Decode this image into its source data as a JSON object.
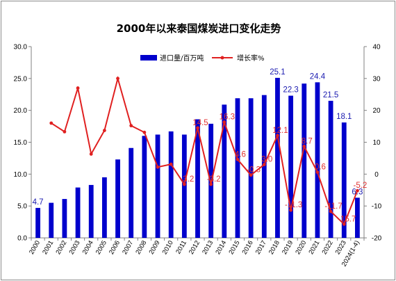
{
  "chart_data": {
    "type": "bar",
    "title": "2000年以来泰国煤炭进口变化走势",
    "categories": [
      "2000",
      "2001",
      "2002",
      "2003",
      "2004",
      "2005",
      "2006",
      "2007",
      "2008",
      "2009",
      "2010",
      "2011",
      "2012",
      "2013",
      "2014",
      "2015",
      "2016",
      "2017",
      "2018",
      "2019",
      "2020",
      "2021",
      "2022",
      "2023",
      "2024(1-4)"
    ],
    "series": [
      {
        "name": "进口量/百万吨",
        "type": "bar",
        "axis": "left",
        "color": "#0000cc",
        "values": [
          4.7,
          5.5,
          6.1,
          7.9,
          8.3,
          9.5,
          12.3,
          14.1,
          16.0,
          16.2,
          16.7,
          16.2,
          18.6,
          17.9,
          20.9,
          21.9,
          21.9,
          22.4,
          25.1,
          22.3,
          24.2,
          24.4,
          21.5,
          18.1,
          6.3
        ]
      },
      {
        "name": "增长率%",
        "type": "line",
        "axis": "right",
        "color": "#e02020",
        "values": [
          null,
          16.0,
          13.3,
          27.0,
          6.3,
          13.7,
          30.0,
          15.2,
          13.1,
          2.2,
          3.1,
          -3.2,
          14.5,
          -3.2,
          16.3,
          4.6,
          -0.3,
          3.0,
          12.1,
          -11.3,
          8.7,
          0.6,
          -11.7,
          -15.7,
          -5.2
        ]
      }
    ],
    "bar_labels": [
      {
        "index": 0,
        "text": "4.7"
      },
      {
        "index": 18,
        "text": "25.1"
      },
      {
        "index": 19,
        "text": "22.3"
      },
      {
        "index": 21,
        "text": "24.4"
      },
      {
        "index": 22,
        "text": "21.5"
      },
      {
        "index": 23,
        "text": "18.1"
      },
      {
        "index": 24,
        "text": "6.3"
      }
    ],
    "line_labels": [
      {
        "index": 11,
        "text": "-3.2"
      },
      {
        "index": 12,
        "text": "14.5"
      },
      {
        "index": 13,
        "text": "-3.2"
      },
      {
        "index": 14,
        "text": "16.3"
      },
      {
        "index": 15,
        "text": "4.6"
      },
      {
        "index": 16,
        "text": "-0.3"
      },
      {
        "index": 17,
        "text": "3.0"
      },
      {
        "index": 18,
        "text": "12.1"
      },
      {
        "index": 19,
        "text": "-11.3"
      },
      {
        "index": 20,
        "text": "8.7"
      },
      {
        "index": 21,
        "text": "0.6"
      },
      {
        "index": 22,
        "text": "-11.7"
      },
      {
        "index": 23,
        "text": "-15.7"
      },
      {
        "index": 24,
        "text": "-5.2"
      }
    ],
    "left_axis": {
      "ylim": [
        0,
        30
      ],
      "ticks": [
        "0.0",
        "5.0",
        "10.0",
        "15.0",
        "20.0",
        "25.0",
        "30.0"
      ]
    },
    "right_axis": {
      "ylim": [
        -20,
        40
      ],
      "ticks": [
        "-20",
        "-10",
        "0",
        "10",
        "20",
        "30",
        "40"
      ]
    },
    "grid": false,
    "legend_position": "top-center"
  }
}
